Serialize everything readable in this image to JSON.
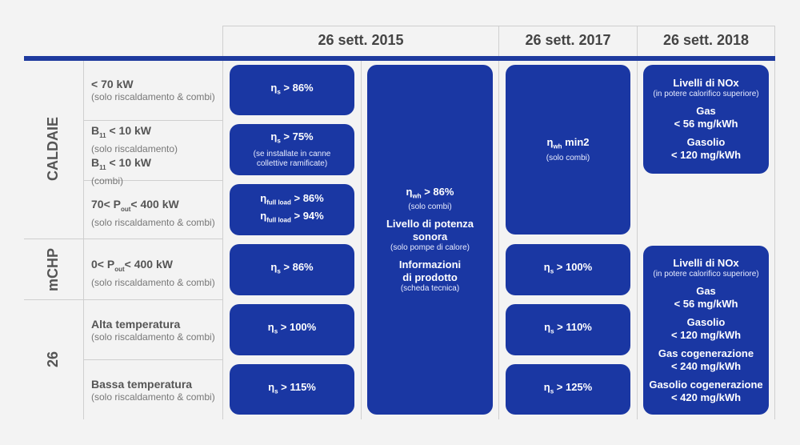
{
  "columns": [
    "26 sett. 2015",
    "26 sett. 2017",
    "26 sett. 2018"
  ],
  "groups": {
    "caldaie": "CALDAIE",
    "mchp": "mCHP",
    "pdc": "26"
  },
  "rows": {
    "r1": {
      "main": "< 70 kW",
      "sub": "(solo riscaldamento & combi)"
    },
    "r2": {
      "main_a": "B",
      "main_a_sub": "11",
      "main_a_rest": " < 10 kW",
      "sub_a": "(solo riscaldamento)",
      "main_b": "B",
      "main_b_sub": "11",
      "main_b_rest": " < 10 kW",
      "sub_b": "(combi)"
    },
    "r3": {
      "main_pre": "70< P",
      "main_sub": "out",
      "main_post": "< 400 kW",
      "sub": "(solo riscaldamento & combi)"
    },
    "r4": {
      "main_pre": "0< P",
      "main_sub": "out",
      "main_post": "< 400 kW",
      "sub": "(solo riscaldamento & combi)"
    },
    "r5": {
      "main": "Alta temperatura",
      "sub": "(solo riscaldamento & combi)"
    },
    "r6": {
      "main": "Bassa temperatura",
      "sub": "(solo riscaldamento & combi)"
    }
  },
  "c2015": {
    "b1": {
      "pre": "η",
      "sub": "s",
      "post": " > 86%"
    },
    "b2": {
      "pre": "η",
      "sub": "s",
      "post": " > 75%",
      "note": "(se installate in canne collettive ramificate)"
    },
    "b3": {
      "l1_pre": "η",
      "l1_sub": "full load",
      "l1_post": " > 86%",
      "l2_pre": "η",
      "l2_sub": "full load",
      "l2_post": " > 94%"
    },
    "b4": {
      "pre": "η",
      "sub": "s",
      "post": " > 86%"
    },
    "b5": {
      "pre": "η",
      "sub": "s",
      "post": " > 100%"
    },
    "b6": {
      "pre": "η",
      "sub": "s",
      "post": " > 115%"
    }
  },
  "tall": {
    "l1_pre": "η",
    "l1_sub": "wh",
    "l1_post": " > 86%",
    "l1_note": "(solo combi)",
    "l2": "Livello di potenza sonora",
    "l2_note": "(solo pompe di calore)",
    "l3": "Informazioni di prodotto",
    "l3_note": "(scheda tecnica)"
  },
  "c2017": {
    "b1": {
      "pre": "η",
      "sub": "wh",
      "post": " min2",
      "note": "(solo combi)"
    },
    "b2": {
      "pre": "η",
      "sub": "s",
      "post": " > 100%"
    },
    "b3": {
      "pre": "η",
      "sub": "s",
      "post": " > 110%"
    },
    "b4": {
      "pre": "η",
      "sub": "s",
      "post": " > 125%"
    }
  },
  "c2018": {
    "b1": {
      "title": "Livelli di NOx",
      "note": "(in potere calorifico superiore)",
      "g1": "Gas",
      "g1v": "< 56 mg/kWh",
      "g2": "Gasolio",
      "g2v": "< 120 mg/kWh"
    },
    "b2": {
      "title": "Livelli di NOx",
      "note": "(in potere calorifico superiore)",
      "g1": "Gas",
      "g1v": "< 56 mg/kWh",
      "g2": "Gasolio",
      "g2v": "< 120 mg/kWh",
      "g3": "Gas cogenerazione",
      "g3v": "< 240 mg/kWh",
      "g4": "Gasolio cogenerazione",
      "g4v": "< 420 mg/kWh"
    }
  }
}
